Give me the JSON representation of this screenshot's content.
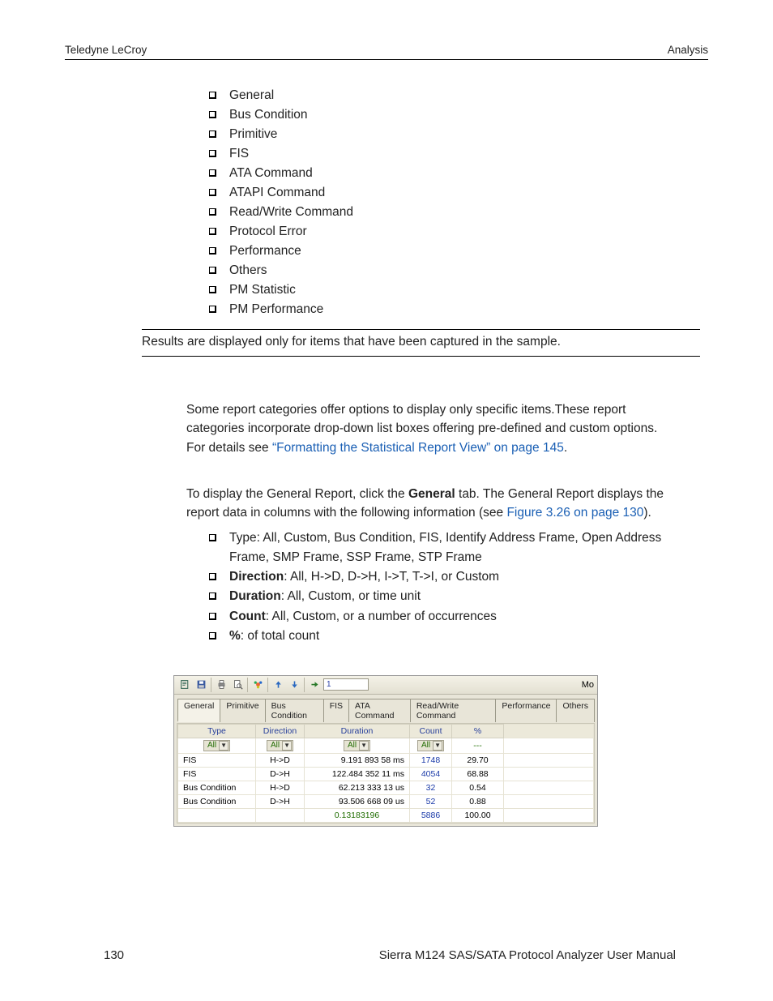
{
  "header": {
    "left": "Teledyne LeCroy",
    "right": "Analysis"
  },
  "bullets1": [
    "General",
    "Bus Condition",
    "Primitive",
    "FIS",
    "ATA Command",
    "ATAPI Command",
    "Read/Write Command",
    "Protocol Error",
    "Performance",
    "Others",
    "PM Statistic",
    "PM Performance"
  ],
  "note": "Results are displayed only for items that have been captured in the sample.",
  "para1_a": "Some report categories offer options to display only specific items.These report categories incorporate drop-down list boxes offering pre-defined and custom options. For details see ",
  "para1_link": "“Formatting the Statistical Report View” on page 145",
  "para1_b": ".",
  "para2_a": "To display the General Report, click the ",
  "para2_bold": "General",
  "para2_b": " tab. The General Report displays the report data in columns with the following information (see ",
  "para2_link": "Figure 3.26 on page 130",
  "para2_c": ").",
  "bullets2": [
    {
      "label": "",
      "text": "Type: All, Custom, Bus Condition, FIS, Identify Address Frame, Open Address Frame, SMP Frame, SSP Frame, STP Frame"
    },
    {
      "label": "Direction",
      "text": ": All, H->D, D->H, I->T, T->I, or Custom"
    },
    {
      "label": "Duration",
      "text": ": All, Custom, or time unit"
    },
    {
      "label": "Count",
      "text": ": All, Custom, or a number of occurrences"
    },
    {
      "label": "%",
      "text": ": of total count"
    }
  ],
  "shot": {
    "input_value": "1",
    "mo": "Mo",
    "tabs": [
      "General",
      "Primitive",
      "Bus Condition",
      "FIS",
      "ATA Command",
      "Read/Write Command",
      "Performance",
      "Others"
    ],
    "active_tab": 0,
    "headers": [
      "Type",
      "Direction",
      "Duration",
      "Count",
      "%"
    ],
    "dropdown_all": "All",
    "pct_default": "---",
    "rows": [
      {
        "type": "FIS",
        "dir": "H->D",
        "dur": "9.191 893 58  ms",
        "cnt": "1748",
        "pct": "29.70"
      },
      {
        "type": "FIS",
        "dir": "D->H",
        "dur": "122.484 352 11  ms",
        "cnt": "4054",
        "pct": "68.88"
      },
      {
        "type": "Bus Condition",
        "dir": "H->D",
        "dur": "62.213 333 13  us",
        "cnt": "32",
        "pct": "0.54"
      },
      {
        "type": "Bus Condition",
        "dir": "D->H",
        "dur": "93.506 668 09  us",
        "cnt": "52",
        "pct": "0.88"
      }
    ],
    "total_dur": "0.13183196",
    "total_cnt": "5886",
    "total_pct": "100.00",
    "colors": {
      "value": "#1a3aa8",
      "header": "#28409b",
      "green": "#1f6d00",
      "bg": "#e8e5d8"
    }
  },
  "footer": {
    "page": "130",
    "doc": "Sierra M124 SAS/SATA Protocol Analyzer User Manual"
  }
}
